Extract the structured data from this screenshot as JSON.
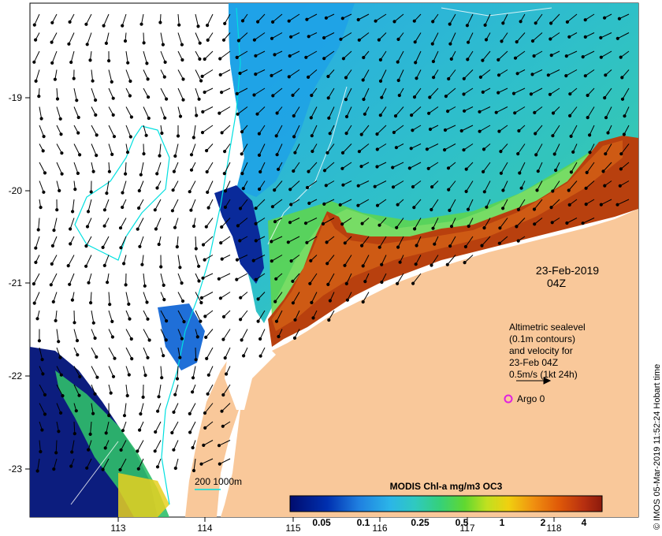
{
  "title_date": "23-Feb-2019",
  "title_time": "04Z",
  "axes": {
    "lon_ticks": [
      "113",
      "114",
      "115",
      "116",
      "117",
      "118"
    ],
    "lat_ticks": [
      "-19",
      "-20",
      "-21",
      "-22",
      "-23"
    ]
  },
  "legend": {
    "line1": "Altimetric sealevel",
    "line2": "(0.1m contours)",
    "line3": "and velocity for",
    "line4": "23-Feb 04Z",
    "line5": "0.5m/s (1kt 24h)"
  },
  "argo_label": "Argo 0",
  "bathymetry_label": "200  1000m",
  "colorbar": {
    "title": "MODIS Chl-a mg/m3 OC3",
    "ticks": [
      "0.05",
      "0.1",
      "0.25",
      "0.5",
      "1",
      "2",
      "4"
    ]
  },
  "credit": "© IMOS 05-Mar-2019 11:52:24 Hobart time",
  "colors": {
    "land": "#f9c89a",
    "low_chl": "#0c1d7e",
    "mid_chl": "#2ab7d5",
    "high_chl": "#a7250d",
    "argo_marker": "#e020e0",
    "contour": "#00e0e0"
  }
}
